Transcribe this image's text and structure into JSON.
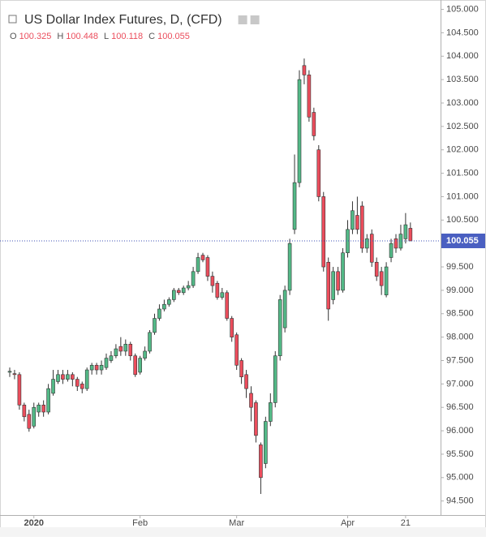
{
  "chart_data": {
    "type": "candlestick",
    "title": "US Dollar Index Futures, D, (CFD)",
    "ohlc_labels": [
      "O",
      "H",
      "L",
      "C"
    ],
    "up_color": "#53b987",
    "down_color": "#eb4d5c",
    "categories": [
      null,
      null,
      null,
      null,
      null,
      "2020",
      null,
      null,
      null,
      null,
      null,
      null,
      null,
      null,
      null,
      null,
      null,
      null,
      null,
      null,
      null,
      null,
      null,
      null,
      null,
      null,
      null,
      "Feb",
      null,
      null,
      null,
      null,
      null,
      null,
      null,
      null,
      null,
      null,
      null,
      null,
      null,
      null,
      null,
      null,
      null,
      null,
      null,
      "Mar",
      null,
      null,
      null,
      null,
      null,
      null,
      null,
      null,
      null,
      null,
      null,
      null,
      null,
      null,
      null,
      null,
      null,
      null,
      null,
      null,
      null,
      null,
      "Apr",
      null,
      null,
      null,
      null,
      null,
      null,
      null,
      null,
      null,
      null,
      null,
      "21",
      null
    ],
    "series": [
      {
        "open": [
          97.25,
          97.22,
          97.2,
          96.55,
          96.35,
          96.1,
          96.4,
          96.55,
          96.4,
          96.8,
          97.05,
          97.2,
          97.1,
          97.2,
          97.1,
          97.0,
          96.9,
          97.3,
          97.4,
          97.3,
          97.35,
          97.5,
          97.6,
          97.8,
          97.7,
          97.85,
          97.6,
          97.25,
          97.55,
          97.7,
          98.1,
          98.4,
          98.6,
          98.7,
          98.8,
          99.0,
          98.95,
          99.05,
          99.1,
          99.4,
          99.75,
          99.7,
          99.3,
          99.15,
          98.85,
          98.95,
          98.4,
          98.05,
          97.5,
          97.2,
          96.8,
          96.6,
          95.7,
          95.3,
          96.2,
          96.6,
          97.6,
          98.2,
          99.0,
          100.3,
          101.3,
          103.8,
          103.6,
          102.8,
          102.0,
          101.0,
          99.6,
          98.8,
          99.4,
          99.0,
          99.8,
          100.3,
          100.6,
          100.8,
          99.9,
          100.2,
          99.6,
          99.4,
          98.9,
          99.7,
          100.1,
          99.9,
          100.1,
          100.325
        ],
        "high": [
          97.35,
          97.3,
          97.25,
          96.6,
          96.45,
          96.6,
          96.6,
          96.65,
          97.0,
          97.3,
          97.3,
          97.3,
          97.3,
          97.25,
          97.15,
          97.05,
          97.35,
          97.45,
          97.45,
          97.5,
          97.65,
          97.7,
          97.85,
          98.0,
          97.95,
          97.9,
          97.65,
          97.6,
          97.8,
          98.15,
          98.5,
          98.7,
          98.8,
          98.85,
          99.05,
          99.05,
          99.1,
          99.2,
          99.5,
          99.8,
          99.8,
          99.75,
          99.4,
          99.2,
          99.05,
          99.0,
          98.45,
          98.1,
          97.55,
          97.3,
          96.95,
          96.65,
          95.75,
          96.3,
          96.8,
          97.7,
          98.9,
          99.1,
          100.1,
          101.9,
          103.7,
          103.95,
          103.7,
          102.9,
          102.1,
          101.1,
          99.7,
          99.5,
          99.5,
          99.9,
          100.5,
          100.9,
          101.0,
          100.9,
          100.2,
          100.3,
          99.7,
          99.5,
          99.6,
          100.1,
          100.2,
          100.4,
          100.65,
          100.448
        ],
        "low": [
          97.15,
          97.1,
          96.45,
          96.2,
          95.98,
          96.05,
          96.3,
          96.3,
          96.35,
          96.75,
          97.0,
          97.0,
          97.05,
          96.95,
          96.85,
          96.8,
          96.85,
          97.2,
          97.2,
          97.2,
          97.3,
          97.45,
          97.55,
          97.6,
          97.6,
          97.5,
          97.15,
          97.2,
          97.5,
          97.65,
          98.05,
          98.35,
          98.55,
          98.65,
          98.75,
          98.9,
          98.9,
          99.0,
          99.05,
          99.35,
          99.6,
          99.2,
          98.95,
          98.8,
          98.8,
          98.35,
          97.9,
          97.3,
          97.0,
          96.7,
          96.2,
          95.75,
          94.65,
          95.2,
          96.1,
          96.5,
          97.5,
          98.1,
          98.9,
          100.2,
          101.2,
          103.4,
          102.6,
          102.2,
          100.9,
          99.4,
          98.35,
          98.7,
          98.9,
          98.95,
          99.7,
          100.2,
          100.2,
          99.8,
          99.8,
          99.5,
          99.2,
          98.9,
          98.85,
          99.6,
          99.8,
          99.85,
          100.0,
          100.118
        ],
        "close": [
          97.27,
          97.2,
          96.55,
          96.3,
          96.05,
          96.5,
          96.55,
          96.4,
          96.9,
          97.1,
          97.2,
          97.1,
          97.2,
          97.1,
          96.95,
          96.9,
          97.3,
          97.4,
          97.3,
          97.4,
          97.55,
          97.6,
          97.75,
          97.7,
          97.85,
          97.6,
          97.2,
          97.55,
          97.7,
          98.1,
          98.4,
          98.6,
          98.7,
          98.8,
          99.0,
          98.95,
          99.05,
          99.1,
          99.4,
          99.7,
          99.65,
          99.3,
          99.1,
          98.85,
          98.95,
          98.4,
          98.0,
          97.4,
          97.15,
          96.9,
          96.5,
          95.9,
          95.0,
          96.2,
          96.6,
          97.6,
          98.8,
          99.0,
          100.0,
          101.3,
          103.5,
          103.6,
          102.7,
          102.3,
          101.0,
          99.5,
          98.6,
          99.4,
          99.0,
          99.8,
          100.3,
          100.7,
          100.3,
          99.9,
          100.1,
          99.6,
          99.3,
          99.1,
          99.5,
          100.0,
          99.9,
          100.2,
          100.4,
          100.055
        ]
      }
    ],
    "ylim": [
      94.2,
      105.2
    ],
    "yticks": [
      {
        "value": 94.5,
        "label": "94.500"
      },
      {
        "value": 95,
        "label": "95.000"
      },
      {
        "value": 95.5,
        "label": "95.500"
      },
      {
        "value": 96,
        "label": "96.000"
      },
      {
        "value": 96.5,
        "label": "96.500"
      },
      {
        "value": 97,
        "label": "97.000"
      },
      {
        "value": 97.5,
        "label": "97.500"
      },
      {
        "value": 98,
        "label": "98.000"
      },
      {
        "value": 98.5,
        "label": "98.500"
      },
      {
        "value": 99,
        "label": "99.000"
      },
      {
        "value": 99.5,
        "label": "99.500"
      },
      {
        "value": 100,
        "label": "100.000"
      },
      {
        "value": 100.5,
        "label": "100.500"
      },
      {
        "value": 101,
        "label": "101.000"
      },
      {
        "value": 101.5,
        "label": "101.500"
      },
      {
        "value": 102,
        "label": "102.000"
      },
      {
        "value": 102.5,
        "label": "102.500"
      },
      {
        "value": 103,
        "label": "103.000"
      },
      {
        "value": 103.5,
        "label": "103.500"
      },
      {
        "value": 104,
        "label": "104.000"
      },
      {
        "value": 104.5,
        "label": "104.500"
      },
      {
        "value": 105,
        "label": "105.000"
      }
    ],
    "grid": false
  }
}
